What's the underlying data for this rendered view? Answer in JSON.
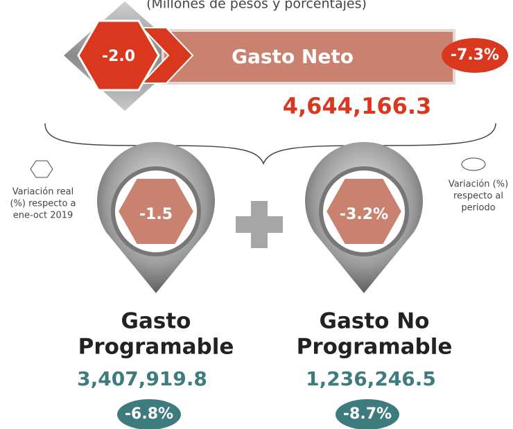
{
  "subtitle": "(Millones de pesos y porcentajes)",
  "main": {
    "variation": "-2.0",
    "label": "Gasto Neto",
    "percent": "-7.3%",
    "amount": "4,644,166.3"
  },
  "legend": {
    "left": [
      "Variación real",
      "(%) respecto a",
      "ene-oct 2019"
    ],
    "right": [
      "Variación (%)",
      "respecto al",
      "periodo"
    ]
  },
  "items": [
    {
      "variation": "-1.5",
      "label": [
        "Gasto",
        "Programable"
      ],
      "amount": "3,407,919.8",
      "percent": "-6.8%"
    },
    {
      "variation": "-3.2%",
      "label": [
        "Gasto No",
        "Programable"
      ],
      "amount": "1,236,246.5",
      "percent": "-8.7%"
    }
  ]
}
